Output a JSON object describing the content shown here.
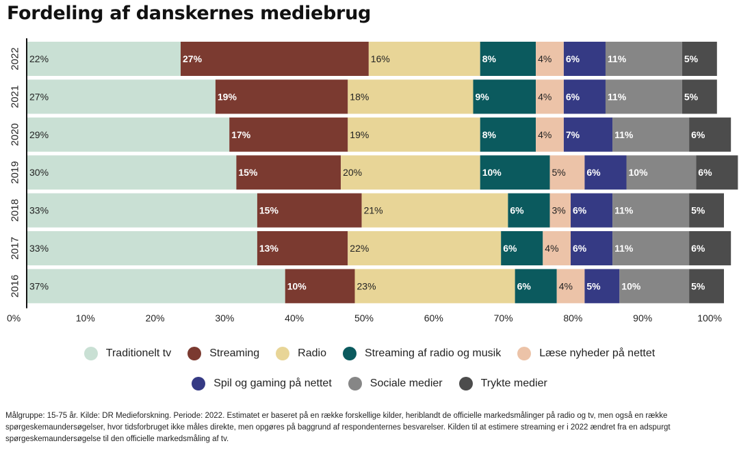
{
  "title": "Fordeling af danskernes mediebrug",
  "chart_data": {
    "type": "bar",
    "orientation": "horizontal",
    "stacked": true,
    "categories": [
      "2022",
      "2021",
      "2020",
      "2019",
      "2018",
      "2017",
      "2016"
    ],
    "series": [
      {
        "name": "Traditionelt tv",
        "color": "#c9e0d4",
        "label_color": "#222222",
        "values": [
          22,
          27,
          29,
          30,
          33,
          33,
          37
        ]
      },
      {
        "name": "Streaming",
        "color": "#7b3a30",
        "label_color": "#ffffff",
        "values": [
          27,
          19,
          17,
          15,
          15,
          13,
          10
        ]
      },
      {
        "name": "Radio",
        "color": "#e8d597",
        "label_color": "#222222",
        "values": [
          16,
          18,
          19,
          20,
          21,
          22,
          23
        ]
      },
      {
        "name": "Streaming af radio og musik",
        "color": "#0b5a5e",
        "label_color": "#ffffff",
        "values": [
          8,
          9,
          8,
          10,
          6,
          6,
          6
        ]
      },
      {
        "name": "Læse nyheder på nettet",
        "color": "#ecc3a8",
        "label_color": "#222222",
        "values": [
          4,
          4,
          4,
          5,
          3,
          4,
          4
        ]
      },
      {
        "name": "Spil og gaming på nettet",
        "color": "#353a84",
        "label_color": "#ffffff",
        "values": [
          6,
          6,
          7,
          6,
          6,
          6,
          5
        ]
      },
      {
        "name": "Sociale medier",
        "color": "#868686",
        "label_color": "#ffffff",
        "values": [
          11,
          11,
          11,
          10,
          11,
          11,
          10
        ]
      },
      {
        "name": "Trykte medier",
        "color": "#4c4c4c",
        "label_color": "#ffffff",
        "values": [
          5,
          5,
          6,
          6,
          5,
          6,
          5
        ]
      }
    ],
    "xticks": [
      "0%",
      "10%",
      "20%",
      "30%",
      "40%",
      "50%",
      "60%",
      "70%",
      "80%",
      "90%",
      "100%"
    ],
    "xlim": [
      0,
      100
    ],
    "legend_position": "bottom",
    "grid": false
  },
  "legend_rows": [
    [
      "Traditionelt tv",
      "Streaming",
      "Radio",
      "Streaming af radio og musik",
      "Læse nyheder på nettet"
    ],
    [
      "Spil og gaming på nettet",
      "Sociale medier",
      "Trykte medier"
    ]
  ],
  "footnote": "Målgruppe: 15-75 år. Kilde: DR Medieforskning. Periode: 2022. Estimatet er baseret på en række forskellige kilder, heriblandt de officielle markedsmålinger på radio og tv, men også en række spørgeskemaundersøgelser, hvor tidsforbruget ikke måles direkte, men opgøres på baggrund af respondenternes besvarelser. Kilden til at estimere streaming er i 2022 ændret fra en adspurgt spørgeskemaundersøgelse til den officielle markedsmåling af tv."
}
